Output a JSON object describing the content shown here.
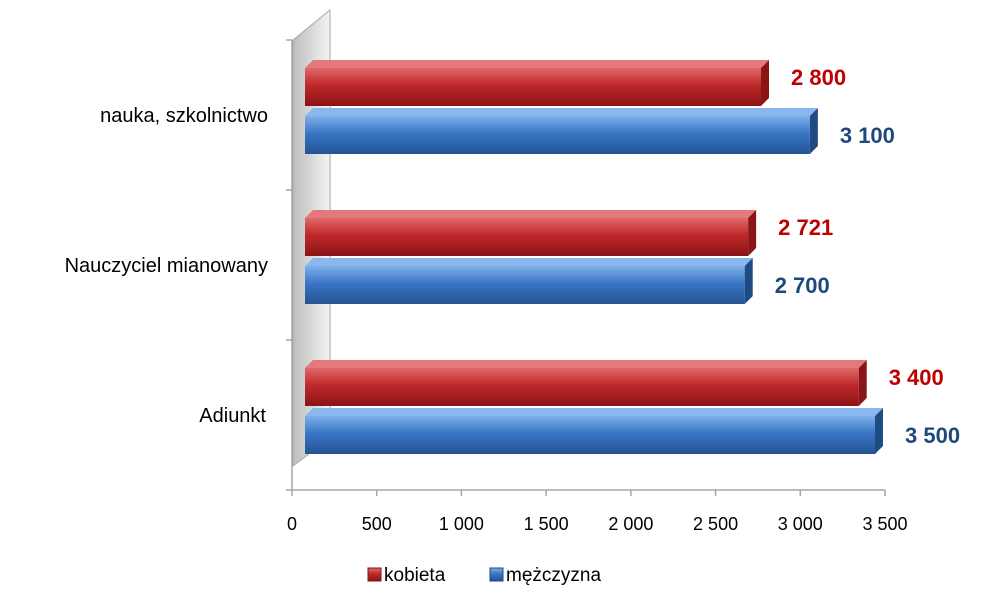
{
  "chart_data": {
    "type": "bar",
    "orientation": "horizontal",
    "style": "3d",
    "categories": [
      "nauka, szkolnictwo",
      "Nauczyciel mianowany",
      "Adiunkt"
    ],
    "series": [
      {
        "name": "kobieta",
        "values": [
          2800,
          2721,
          3400
        ],
        "value_labels": [
          "2 800",
          "2 721",
          "3 400"
        ],
        "color": "#c0282a",
        "label_color": "#c00000"
      },
      {
        "name": "mężczyzna",
        "values": [
          3100,
          2700,
          3500
        ],
        "value_labels": [
          "3 100",
          "2 700",
          "3 500"
        ],
        "color": "#3a76c6",
        "label_color": "#1f497d"
      }
    ],
    "x_ticks": [
      0,
      500,
      1000,
      1500,
      2000,
      2500,
      3000,
      3500
    ],
    "x_tick_labels": [
      "0",
      "500",
      "1 000",
      "1 500",
      "2 000",
      "2 500",
      "3 000",
      "3 500"
    ],
    "xlim": [
      0,
      3500
    ],
    "grid": false,
    "legend_position": "bottom",
    "title": "",
    "xlabel": "",
    "ylabel": ""
  }
}
